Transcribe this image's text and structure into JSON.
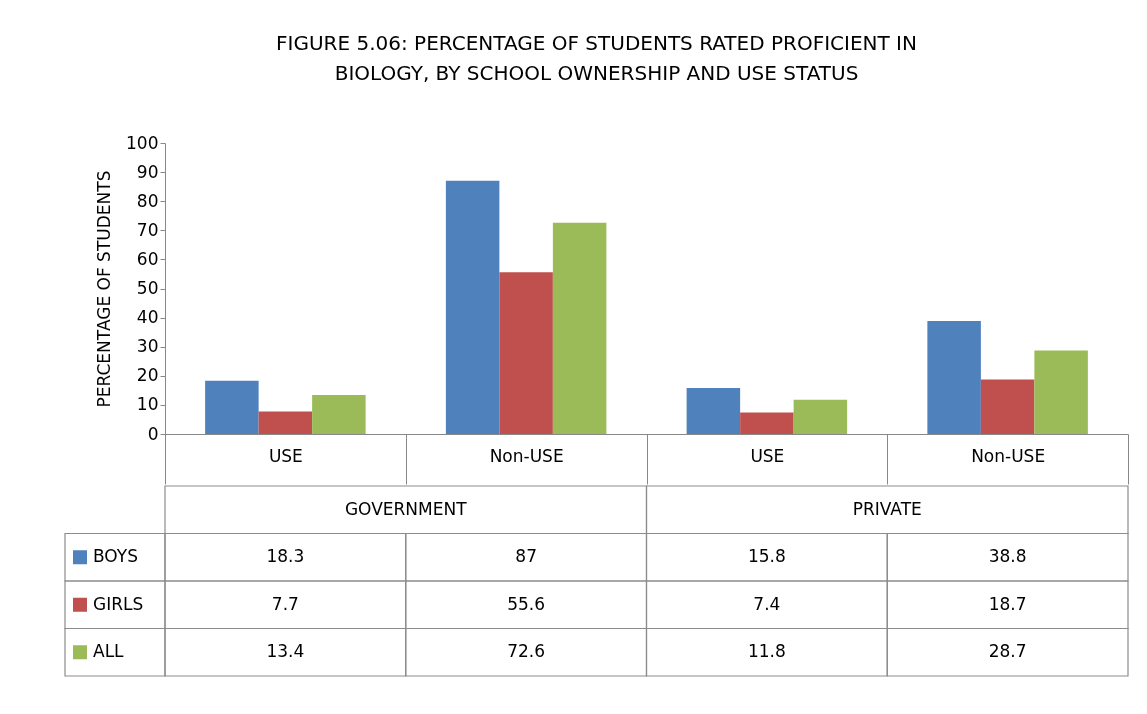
{
  "chart_data": {
    "type": "bar",
    "title": "FIGURE 5.06: PERCENTAGE OF STUDENTS RATED PROFICIENT IN\nBIOLOGY, BY SCHOOL OWNERSHIP AND USE STATUS",
    "ylabel": "PERCENTAGE OF STUDENTS",
    "categories": [
      "USE",
      "Non-USE",
      "USE",
      "Non-USE"
    ],
    "annotations": [
      "GOVERNMENT",
      "PRIVATE"
    ],
    "series": [
      {
        "name": "BOYS",
        "color": "#4f81bd",
        "values": [
          18.3,
          87,
          15.8,
          38.8
        ]
      },
      {
        "name": "GIRLS",
        "color": "#c0504d",
        "values": [
          7.7,
          55.6,
          7.4,
          18.7
        ]
      },
      {
        "name": "ALL",
        "color": "#9bbb59",
        "values": [
          13.4,
          72.6,
          11.8,
          28.7
        ]
      }
    ],
    "ylim": [
      0,
      100
    ],
    "yticks": [
      0,
      10,
      20,
      30,
      40,
      50,
      60,
      70,
      80,
      90,
      100
    ],
    "grid": false,
    "legend": "bottom",
    "data_labels": true
  }
}
